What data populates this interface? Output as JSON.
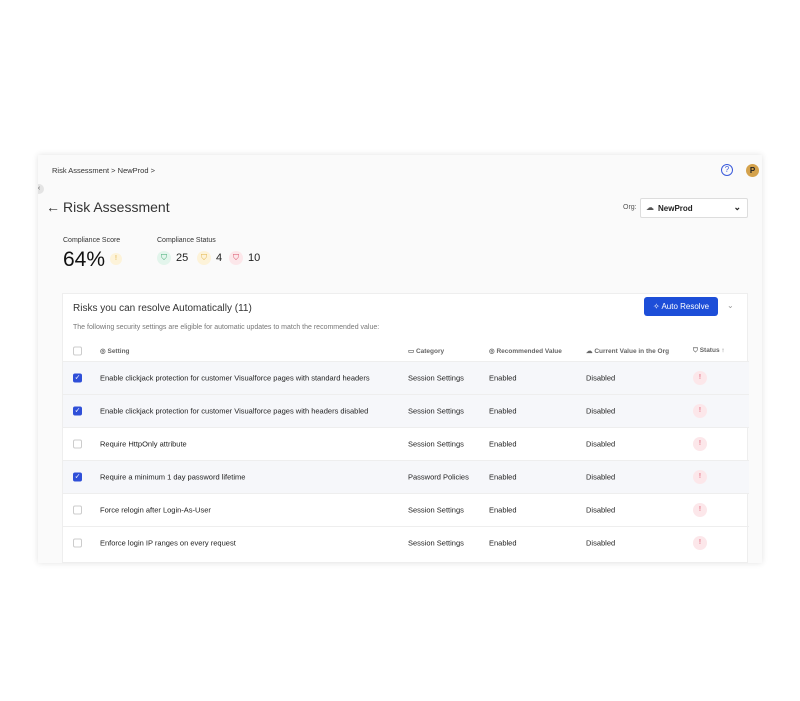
{
  "breadcrumb": "Risk Assessment > NewProd >",
  "header": {
    "title": "Risk Assessment",
    "help_icon": "?",
    "avatar": "P",
    "org_label": "Org:",
    "org_value": "NewProd"
  },
  "summary": {
    "score_label": "Compliance Score",
    "score": "64%",
    "status_label": "Compliance Status",
    "passed": "25",
    "warning": "4",
    "failed": "10"
  },
  "panel": {
    "title": "Risks you can resolve Automatically (11)",
    "subtitle": "The following security settings are eligible for automatic updates to match the recommended value:",
    "auto_resolve": "Auto Resolve"
  },
  "columns": {
    "setting": "Setting",
    "category": "Category",
    "recommended": "Recommended Value",
    "current": "Current Value in the Org",
    "status": "Status"
  },
  "rows": [
    {
      "checked": true,
      "setting": "Enable clickjack protection for customer Visualforce pages with standard headers",
      "category": "Session Settings",
      "recommended": "Enabled",
      "current": "Disabled"
    },
    {
      "checked": true,
      "setting": "Enable clickjack protection for customer Visualforce pages with headers disabled",
      "category": "Session Settings",
      "recommended": "Enabled",
      "current": "Disabled"
    },
    {
      "checked": false,
      "setting": "Require HttpOnly attribute",
      "category": "Session Settings",
      "recommended": "Enabled",
      "current": "Disabled"
    },
    {
      "checked": true,
      "setting": "Require a minimum 1 day password lifetime",
      "category": "Password Policies",
      "recommended": "Enabled",
      "current": "Disabled"
    },
    {
      "checked": false,
      "setting": "Force relogin after Login-As-User",
      "category": "Session Settings",
      "recommended": "Enabled",
      "current": "Disabled"
    },
    {
      "checked": false,
      "setting": "Enforce login IP ranges on every request",
      "category": "Session Settings",
      "recommended": "Enabled",
      "current": "Disabled"
    }
  ],
  "colors": {
    "accent": "#1d4ed8",
    "pass": "#3aa76d",
    "warn": "#e0b040",
    "fail": "#d94a62"
  }
}
